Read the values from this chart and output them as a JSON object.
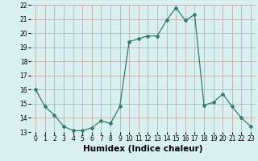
{
  "x": [
    0,
    1,
    2,
    3,
    4,
    5,
    6,
    7,
    8,
    9,
    10,
    11,
    12,
    13,
    14,
    15,
    16,
    17,
    18,
    19,
    20,
    21,
    22,
    23
  ],
  "y": [
    16.0,
    14.8,
    14.2,
    13.4,
    13.1,
    13.1,
    13.3,
    13.8,
    13.6,
    14.8,
    19.4,
    19.6,
    19.8,
    19.8,
    20.9,
    21.8,
    20.9,
    21.3,
    14.9,
    15.1,
    15.7,
    14.8,
    14.0,
    13.4
  ],
  "xlabel": "Humidex (Indice chaleur)",
  "ylim": [
    13,
    22
  ],
  "xlim_min": -0.5,
  "xlim_max": 23.5,
  "yticks": [
    13,
    14,
    15,
    16,
    17,
    18,
    19,
    20,
    21,
    22
  ],
  "xticks": [
    0,
    1,
    2,
    3,
    4,
    5,
    6,
    7,
    8,
    9,
    10,
    11,
    12,
    13,
    14,
    15,
    16,
    17,
    18,
    19,
    20,
    21,
    22,
    23
  ],
  "line_color": "#2e7d6e",
  "marker": "D",
  "marker_size": 2.0,
  "background_color": "#d9f0f0",
  "grid_color": "#c0a0a0",
  "tick_fontsize": 5.5,
  "xlabel_fontsize": 7.5
}
